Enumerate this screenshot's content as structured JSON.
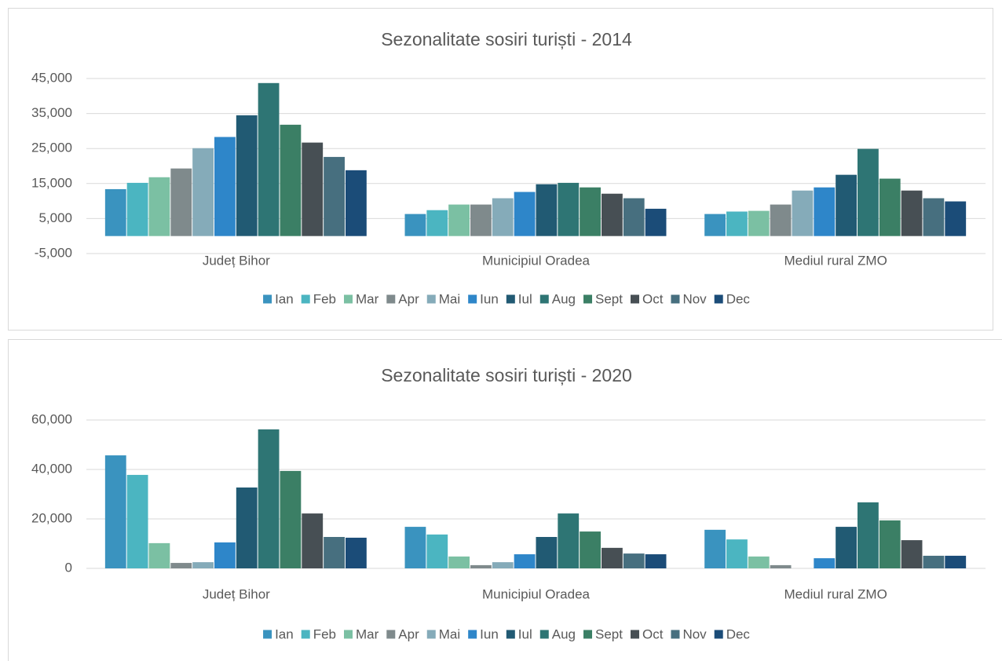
{
  "chart_data": [
    {
      "type": "bar",
      "title": "Sezonalitate sosiri turiști - 2014",
      "categories": [
        "Județ Bihor",
        "Municipiul Oradea",
        "Mediul rural ZMO"
      ],
      "ylim": [
        -5000,
        45000
      ],
      "yticks": [
        {
          "value": -5000,
          "label": "-5,000"
        },
        {
          "value": 5000,
          "label": "5,000"
        },
        {
          "value": 15000,
          "label": "15,000"
        },
        {
          "value": 25000,
          "label": "25,000"
        },
        {
          "value": 35000,
          "label": "35,000"
        },
        {
          "value": 45000,
          "label": "45,000"
        }
      ],
      "grid": true,
      "legend": "bottom",
      "series": [
        {
          "name": "Ian",
          "color": "#3a93bf",
          "values": [
            13400,
            6300,
            6300
          ]
        },
        {
          "name": "Feb",
          "color": "#4bb5c1",
          "values": [
            15200,
            7400,
            7000
          ]
        },
        {
          "name": "Mar",
          "color": "#7bc0a3",
          "values": [
            16800,
            9000,
            7200
          ]
        },
        {
          "name": "Apr",
          "color": "#7f8a8c",
          "values": [
            19300,
            9000,
            9000
          ]
        },
        {
          "name": "Mai",
          "color": "#85abb9",
          "values": [
            25100,
            10800,
            13000
          ]
        },
        {
          "name": "Iun",
          "color": "#2e86c9",
          "values": [
            28300,
            12600,
            13900
          ]
        },
        {
          "name": "Iul",
          "color": "#215a73",
          "values": [
            34500,
            14800,
            17500
          ]
        },
        {
          "name": "Aug",
          "color": "#2e7574",
          "values": [
            43700,
            15200,
            24900
          ]
        },
        {
          "name": "Sept",
          "color": "#3b7f65",
          "values": [
            31800,
            13900,
            16400
          ]
        },
        {
          "name": "Oct",
          "color": "#474f54",
          "values": [
            26700,
            12100,
            13000
          ]
        },
        {
          "name": "Nov",
          "color": "#476f7f",
          "values": [
            22600,
            10800,
            10800
          ]
        },
        {
          "name": "Dec",
          "color": "#1b4c78",
          "values": [
            18800,
            7800,
            9900
          ]
        }
      ]
    },
    {
      "type": "bar",
      "title": "Sezonalitate sosiri turiști - 2020",
      "categories": [
        "Județ Bihor",
        "Municipiul Oradea",
        "Mediul rural ZMO"
      ],
      "ylim": [
        0,
        60000
      ],
      "yticks": [
        0,
        {
          "value": 20000,
          "label": "20,000"
        },
        {
          "value": 40000,
          "label": "40,000"
        },
        {
          "value": 60000,
          "label": "60,000"
        }
      ],
      "grid": true,
      "legend": "bottom",
      "series": [
        {
          "name": "Ian",
          "color": "#3a93bf",
          "values": [
            45700,
            16800,
            15600
          ]
        },
        {
          "name": "Feb",
          "color": "#4bb5c1",
          "values": [
            37800,
            13700,
            11700
          ]
        },
        {
          "name": "Mar",
          "color": "#7bc0a3",
          "values": [
            10200,
            4800,
            4800
          ]
        },
        {
          "name": "Apr",
          "color": "#7f8a8c",
          "values": [
            2200,
            1300,
            1300
          ]
        },
        {
          "name": "Mai",
          "color": "#85abb9",
          "values": [
            2500,
            2500,
            0
          ]
        },
        {
          "name": "Iun",
          "color": "#2e86c9",
          "values": [
            10500,
            5700,
            4100
          ]
        },
        {
          "name": "Iul",
          "color": "#215a73",
          "values": [
            32700,
            12700,
            16800
          ]
        },
        {
          "name": "Aug",
          "color": "#2e7574",
          "values": [
            56200,
            22200,
            26700
          ]
        },
        {
          "name": "Sept",
          "color": "#3b7f65",
          "values": [
            39400,
            14900,
            19400
          ]
        },
        {
          "name": "Oct",
          "color": "#474f54",
          "values": [
            22200,
            8300,
            11400
          ]
        },
        {
          "name": "Nov",
          "color": "#476f7f",
          "values": [
            12700,
            6000,
            5100
          ]
        },
        {
          "name": "Dec",
          "color": "#1b4c78",
          "values": [
            12400,
            5700,
            5100
          ]
        }
      ]
    }
  ]
}
